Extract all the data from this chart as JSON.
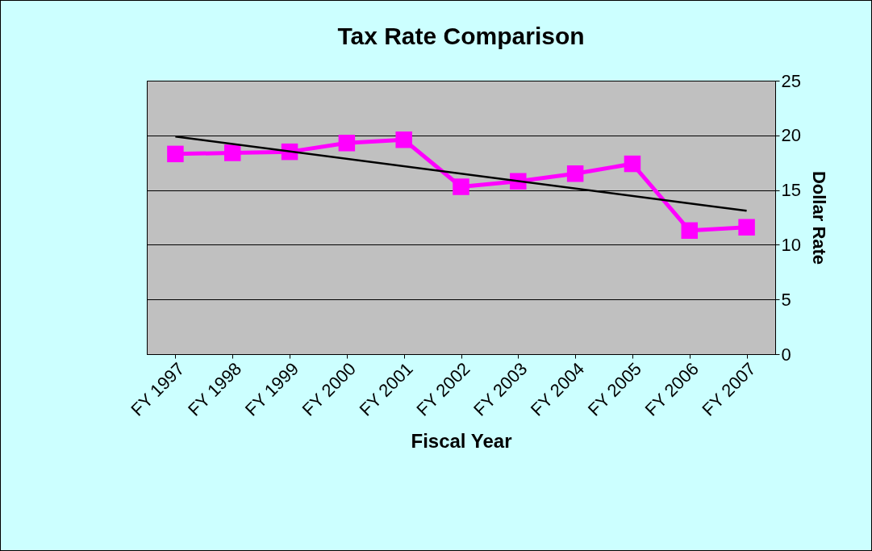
{
  "chart_data": {
    "type": "line",
    "title": "Tax Rate Comparison",
    "xlabel": "Fiscal Year",
    "ylabel": "Dollar Rate",
    "categories": [
      "FY 1997",
      "FY 1998",
      "FY 1999",
      "FY 2000",
      "FY 2001",
      "FY 2002",
      "FY 2003",
      "FY 2004",
      "FY 2005",
      "FY 2006",
      "FY 2007"
    ],
    "series": [
      {
        "color": "#ff00ff",
        "marker": "square",
        "values": [
          18.3,
          18.4,
          18.5,
          19.3,
          19.6,
          15.3,
          15.8,
          16.5,
          17.4,
          11.3,
          11.6
        ]
      },
      {
        "type": "line",
        "marker": "none",
        "color": "#000000",
        "x": [
          "FY 1997",
          "FY 2007"
        ],
        "values": [
          19.9,
          13.1
        ]
      }
    ],
    "ylim": [
      0,
      25
    ],
    "yticks": [
      0,
      5,
      10,
      15,
      20,
      25
    ],
    "grid": "y",
    "line_style": "solid"
  }
}
